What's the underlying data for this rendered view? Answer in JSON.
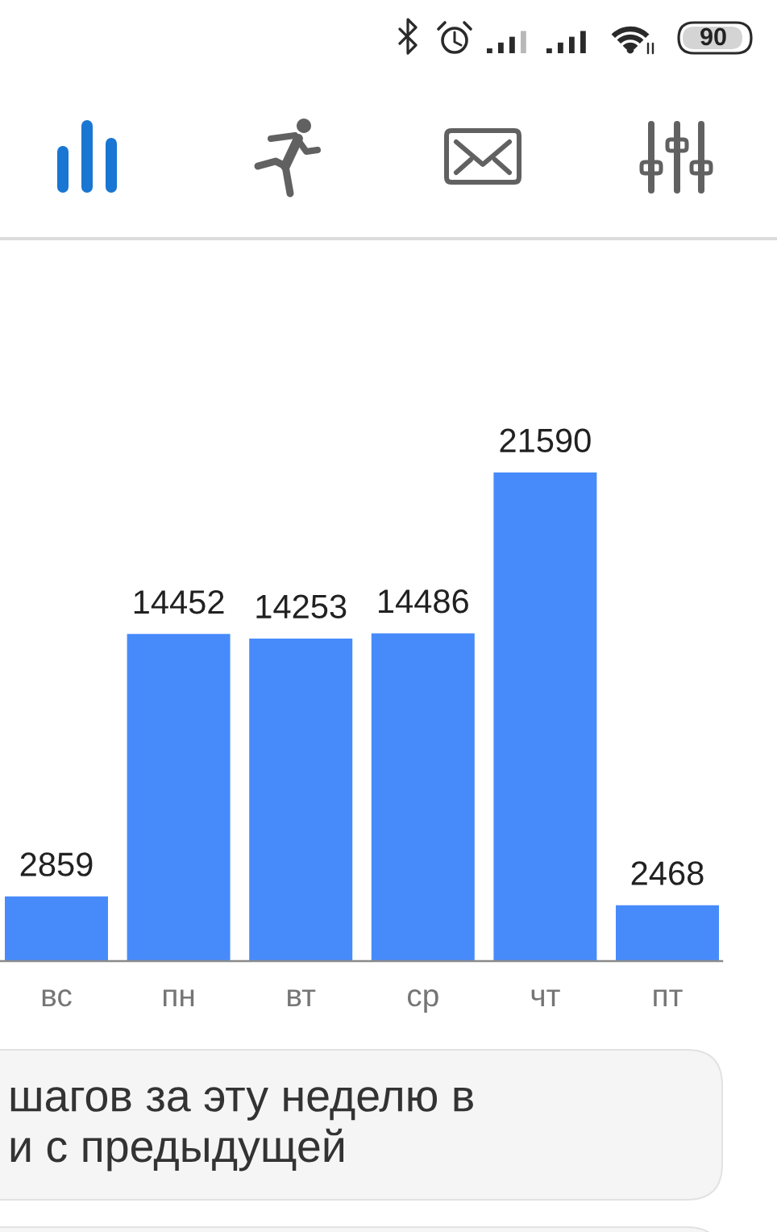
{
  "chart_data": {
    "type": "bar",
    "categories": [
      "вс",
      "пн",
      "вт",
      "ср",
      "чт",
      "пт"
    ],
    "values": [
      2859,
      14452,
      14253,
      14486,
      21590,
      2468
    ],
    "color": "#478bfb",
    "data_labels": true,
    "annotations": [
      "90",
      "шагов за эту неделю в\nи с предыдущей"
    ]
  }
}
